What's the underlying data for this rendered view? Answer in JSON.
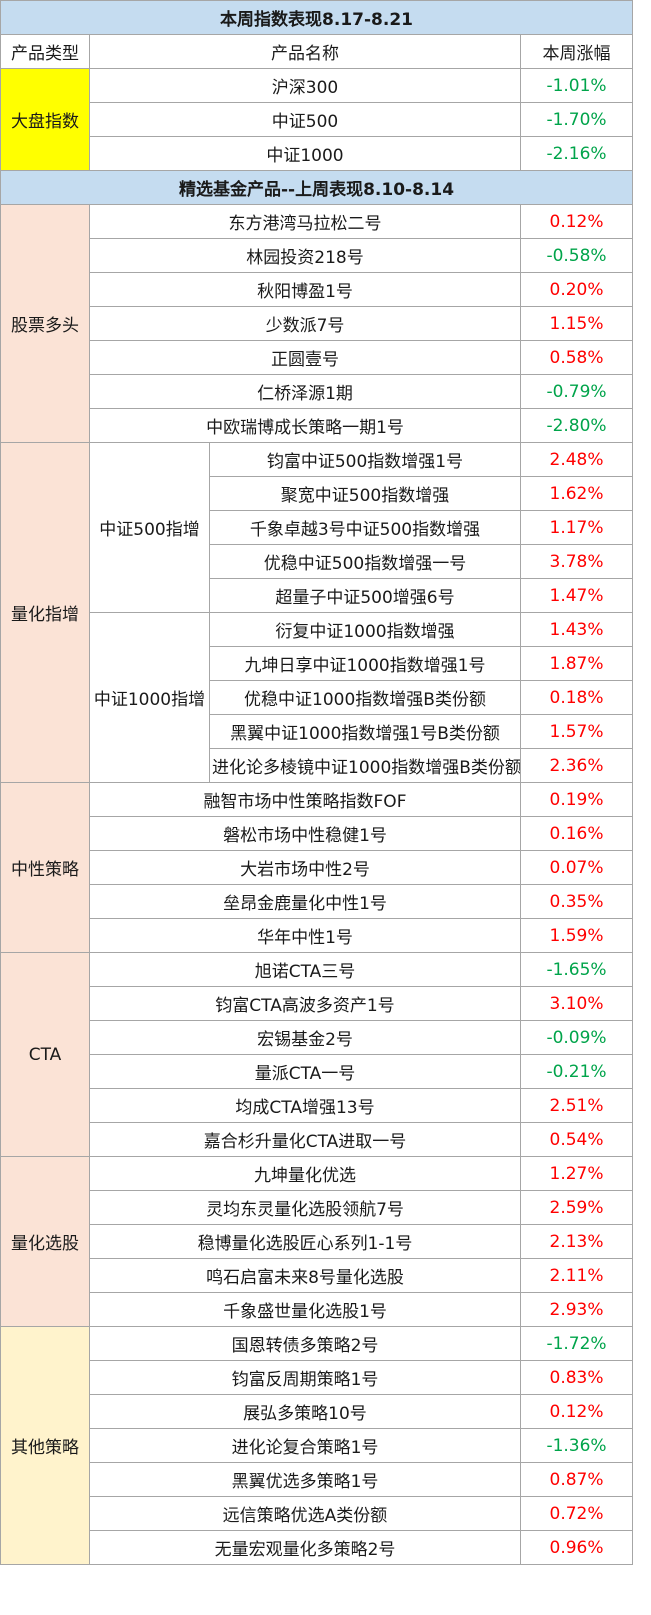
{
  "title1": "本周指数表现8.17-8.21",
  "headers": {
    "type": "产品类型",
    "name": "产品名称",
    "change": "本周涨幅"
  },
  "index_group": {
    "label": "大盘指数",
    "rows": [
      {
        "name": "沪深300",
        "change": "-1.01%"
      },
      {
        "name": "中证500",
        "change": "-1.70%"
      },
      {
        "name": "中证1000",
        "change": "-2.16%"
      }
    ]
  },
  "title2": "精选基金产品--上周表现8.10-8.14",
  "stock_long": {
    "label": "股票多头",
    "rows": [
      {
        "name": "东方港湾马拉松二号",
        "change": "0.12%"
      },
      {
        "name": "林园投资218号",
        "change": "-0.58%"
      },
      {
        "name": "秋阳博盈1号",
        "change": "0.20%"
      },
      {
        "name": "少数派7号",
        "change": "1.15%"
      },
      {
        "name": "正圆壹号",
        "change": "0.58%"
      },
      {
        "name": "仁桥泽源1期",
        "change": "-0.79%"
      },
      {
        "name": "中欧瑞博成长策略一期1号",
        "change": "-2.80%"
      }
    ]
  },
  "quant_index": {
    "label": "量化指增",
    "sub500": {
      "label": "中证500指增",
      "rows": [
        {
          "name": "钧富中证500指数增强1号",
          "change": "2.48%"
        },
        {
          "name": "聚宽中证500指数增强",
          "change": "1.62%"
        },
        {
          "name": "千象卓越3号中证500指数增强",
          "change": "1.17%"
        },
        {
          "name": "优稳中证500指数增强一号",
          "change": "3.78%"
        },
        {
          "name": "超量子中证500增强6号",
          "change": "1.47%"
        }
      ]
    },
    "sub1000": {
      "label": "中证1000指增",
      "rows": [
        {
          "name": "衍复中证1000指数增强",
          "change": "1.43%"
        },
        {
          "name": "九坤日享中证1000指数增强1号",
          "change": "1.87%"
        },
        {
          "name": "优稳中证1000指数增强B类份额",
          "change": "0.18%"
        },
        {
          "name": "黑翼中证1000指数增强1号B类份额",
          "change": "1.57%"
        },
        {
          "name": "进化论多棱镜中证1000指数增强B类份额",
          "change": "2.36%"
        }
      ]
    }
  },
  "neutral": {
    "label": "中性策略",
    "rows": [
      {
        "name": "融智市场中性策略指数FOF",
        "change": "0.19%"
      },
      {
        "name": "磐松市场中性稳健1号",
        "change": "0.16%"
      },
      {
        "name": "大岩市场中性2号",
        "change": "0.07%"
      },
      {
        "name": "垒昂金鹿量化中性1号",
        "change": "0.35%"
      },
      {
        "name": "华年中性1号",
        "change": "1.59%"
      }
    ]
  },
  "cta": {
    "label": "CTA",
    "rows": [
      {
        "name": "旭诺CTA三号",
        "change": "-1.65%"
      },
      {
        "name": "钧富CTA高波多资产1号",
        "change": "3.10%"
      },
      {
        "name": "宏锡基金2号",
        "change": "-0.09%"
      },
      {
        "name": "量派CTA一号",
        "change": "-0.21%"
      },
      {
        "name": "均成CTA增强13号",
        "change": "2.51%"
      },
      {
        "name": "嘉合杉升量化CTA进取一号",
        "change": "0.54%"
      }
    ]
  },
  "quant_stock": {
    "label": "量化选股",
    "rows": [
      {
        "name": "九坤量化优选",
        "change": "1.27%"
      },
      {
        "name": "灵均东灵量化选股领航7号",
        "change": "2.59%"
      },
      {
        "name": "稳博量化选股匠心系列1-1号",
        "change": "2.13%"
      },
      {
        "name": "鸣石启富未来8号量化选股",
        "change": "2.11%"
      },
      {
        "name": "千象盛世量化选股1号",
        "change": "2.93%"
      }
    ]
  },
  "other": {
    "label": "其他策略",
    "rows": [
      {
        "name": "国恩转债多策略2号",
        "change": "-1.72%"
      },
      {
        "name": "钧富反周期策略1号",
        "change": "0.83%"
      },
      {
        "name": "展弘多策略10号",
        "change": "0.12%"
      },
      {
        "name": "进化论复合策略1号",
        "change": "-1.36%"
      },
      {
        "name": "黑翼优选多策略1号",
        "change": "0.87%"
      },
      {
        "name": "远信策略优选A类份额",
        "change": "0.72%"
      },
      {
        "name": "无量宏观量化多策略2号",
        "change": "0.96%"
      }
    ]
  },
  "colors": {
    "up": "#ff0000",
    "down": "#00a44a",
    "header_bg": "#c5dcf0",
    "yellow": "#ffff00"
  }
}
